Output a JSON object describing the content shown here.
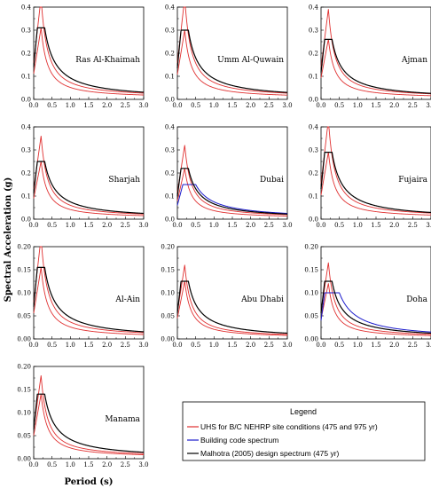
{
  "chart_data": {
    "type": "line",
    "xlabel": "Period (s)",
    "ylabel": "Spectral Acceleration (g)",
    "xlim": [
      0.0,
      3.0
    ],
    "xticks": [
      "0.0",
      "0.5",
      "1.0",
      "1.5",
      "2.0",
      "2.5",
      "3.0"
    ],
    "legend": {
      "title": "Legend",
      "placement": "bottom-right",
      "entries": [
        {
          "label": "UHS for B/C NEHRP site conditions (475 and 975 yr)",
          "color": "#e03030"
        },
        {
          "label": "Building code spectrum",
          "color": "#1a1acc"
        },
        {
          "label": "Malhotra (2005) design spectrum (475 yr)",
          "color": "#000000"
        }
      ]
    },
    "panels": [
      {
        "title": "Ras Al-Khaimah",
        "ylim": [
          0,
          0.4
        ],
        "yticks": [
          "0.0",
          "0.1",
          "0.2",
          "0.3",
          "0.4"
        ],
        "uhs975_peak": 0.44,
        "uhs475_peak": 0.31,
        "design_plateau": 0.31,
        "building_code": null
      },
      {
        "title": "Umm Al-Quwain",
        "ylim": [
          0,
          0.4
        ],
        "yticks": [
          "0.0",
          "0.1",
          "0.2",
          "0.3",
          "0.4"
        ],
        "uhs975_peak": 0.44,
        "uhs475_peak": 0.3,
        "design_plateau": 0.3,
        "building_code": null
      },
      {
        "title": "Ajman",
        "ylim": [
          0,
          0.4
        ],
        "yticks": [
          "0.0",
          "0.1",
          "0.2",
          "0.3",
          "0.4"
        ],
        "uhs975_peak": 0.39,
        "uhs475_peak": 0.26,
        "design_plateau": 0.26,
        "building_code": null
      },
      {
        "title": "Sharjah",
        "ylim": [
          0,
          0.4
        ],
        "yticks": [
          "0.0",
          "0.1",
          "0.2",
          "0.3",
          "0.4"
        ],
        "uhs975_peak": 0.36,
        "uhs475_peak": 0.25,
        "design_plateau": 0.25,
        "building_code": null
      },
      {
        "title": "Dubai",
        "ylim": [
          0,
          0.4
        ],
        "yticks": [
          "0.0",
          "0.1",
          "0.2",
          "0.3",
          "0.4"
        ],
        "uhs975_peak": 0.32,
        "uhs475_peak": 0.22,
        "design_plateau": 0.22,
        "building_code": {
          "plateau": 0.15,
          "t_start": 0.15,
          "t_end": 0.5,
          "value_3s": 0.025
        }
      },
      {
        "title": "Fujaira",
        "ylim": [
          0,
          0.4
        ],
        "yticks": [
          "0.0",
          "0.1",
          "0.2",
          "0.3",
          "0.4"
        ],
        "uhs975_peak": 0.43,
        "uhs475_peak": 0.29,
        "design_plateau": 0.29,
        "building_code": null
      },
      {
        "title": "Al-Ain",
        "ylim": [
          0,
          0.2
        ],
        "yticks": [
          "0.00",
          "0.05",
          "0.10",
          "0.15",
          "0.20"
        ],
        "uhs975_peak": 0.22,
        "uhs475_peak": 0.155,
        "design_plateau": 0.155,
        "building_code": null
      },
      {
        "title": "Abu Dhabi",
        "ylim": [
          0,
          0.2
        ],
        "yticks": [
          "0.00",
          "0.05",
          "0.10",
          "0.15",
          "0.20"
        ],
        "uhs975_peak": 0.16,
        "uhs475_peak": 0.125,
        "design_plateau": 0.125,
        "building_code": null
      },
      {
        "title": "Doha",
        "ylim": [
          0,
          0.2
        ],
        "yticks": [
          "0.00",
          "0.05",
          "0.10",
          "0.15",
          "0.20"
        ],
        "uhs975_peak": 0.165,
        "uhs475_peak": 0.12,
        "design_plateau": 0.125,
        "building_code": {
          "plateau": 0.1,
          "t_start": 0.1,
          "t_end": 0.5,
          "value_3s": 0.015
        }
      },
      {
        "title": "Manama",
        "ylim": [
          0,
          0.2
        ],
        "yticks": [
          "0.00",
          "0.05",
          "0.10",
          "0.15",
          "0.20"
        ],
        "uhs975_peak": 0.18,
        "uhs475_peak": 0.14,
        "design_plateau": 0.14,
        "building_code": null
      }
    ]
  }
}
